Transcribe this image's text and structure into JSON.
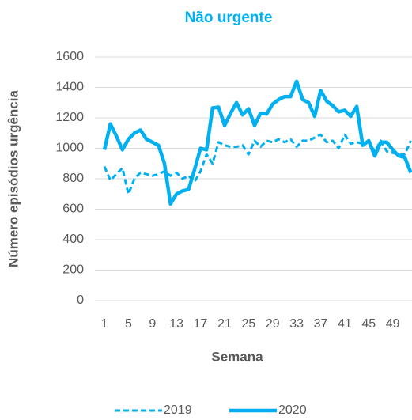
{
  "chart_data": {
    "type": "line",
    "title": "Não urgente",
    "x_label": "Semana",
    "y_label": "Número episódios urgência",
    "categories": [
      1,
      null,
      null,
      null,
      5,
      null,
      null,
      null,
      9,
      null,
      null,
      null,
      13,
      null,
      null,
      null,
      17,
      null,
      null,
      null,
      21,
      null,
      null,
      null,
      25,
      null,
      null,
      null,
      29,
      null,
      null,
      null,
      33,
      null,
      null,
      null,
      37,
      null,
      null,
      null,
      41,
      null,
      null,
      null,
      45,
      null,
      null,
      null,
      49,
      null,
      null,
      null
    ],
    "series": [
      {
        "name": "2019",
        "color": "#00b0f0",
        "dash": true,
        "values": [
          880,
          790,
          830,
          870,
          700,
          800,
          840,
          830,
          820,
          830,
          850,
          820,
          840,
          800,
          820,
          780,
          850,
          960,
          900,
          1040,
          1020,
          1010,
          1010,
          1020,
          960,
          1050,
          1010,
          1050,
          1040,
          1060,
          1040,
          1060,
          1010,
          1050,
          1050,
          1070,
          1090,
          1040,
          1050,
          1000,
          1090,
          1030,
          1040,
          1030,
          1040,
          980,
          1050,
          980,
          970,
          960,
          960,
          1050
        ]
      },
      {
        "name": "2020",
        "color": "#00b0f0",
        "dash": false,
        "values": [
          990,
          1160,
          1080,
          990,
          1060,
          1100,
          1120,
          1060,
          1040,
          1020,
          900,
          635,
          700,
          720,
          730,
          860,
          1000,
          990,
          1265,
          1270,
          1150,
          1230,
          1300,
          1220,
          1260,
          1150,
          1230,
          1225,
          1290,
          1320,
          1340,
          1340,
          1440,
          1320,
          1300,
          1210,
          1380,
          1310,
          1280,
          1240,
          1250,
          1210,
          1275,
          1020,
          1050,
          950,
          1040,
          1040,
          990,
          950,
          940,
          840
        ]
      }
    ],
    "ylim": [
      0,
      1600
    ],
    "yticks": [
      0,
      200,
      400,
      600,
      800,
      1000,
      1200,
      1400,
      1600
    ],
    "grid": true,
    "legend": "bottom"
  }
}
